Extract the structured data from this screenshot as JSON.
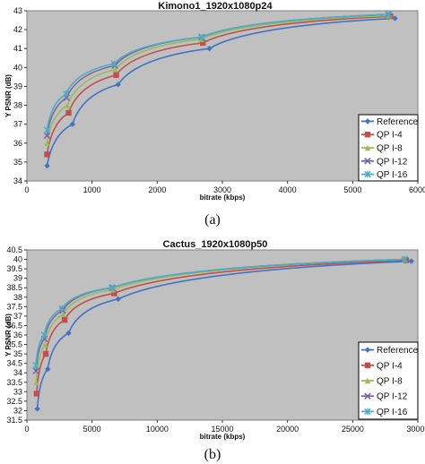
{
  "chart_data": [
    {
      "type": "line",
      "caption": "(a)",
      "title": "Kimono1_1920x1080p24",
      "xlabel": "bitrate (kbps)",
      "ylabel": "Y PSNR (dB)",
      "xlim": [
        0,
        6000
      ],
      "ylim": [
        34,
        43
      ],
      "x_ticks": [
        "0",
        "1000",
        "2000",
        "3000",
        "4000",
        "5000",
        "6000"
      ],
      "y_ticks": [
        "34",
        "35",
        "36",
        "37",
        "38",
        "39",
        "40",
        "41",
        "42",
        "43"
      ],
      "grid": false,
      "legend_position": "bottom-right",
      "series": [
        {
          "name": "Reference",
          "color": "#4472c4",
          "marker": "diamond",
          "x": [
            310,
            700,
            1400,
            2800,
            5650
          ],
          "y": [
            34.8,
            37.0,
            39.1,
            41.0,
            42.6
          ]
        },
        {
          "name": "QP I-4",
          "color": "#c0504d",
          "marker": "square",
          "x": [
            310,
            640,
            1370,
            2700,
            5580
          ],
          "y": [
            35.4,
            37.6,
            39.6,
            41.3,
            42.7
          ]
        },
        {
          "name": "QP I-8",
          "color": "#9bbb59",
          "marker": "triangle",
          "x": [
            310,
            620,
            1360,
            2680,
            5560
          ],
          "y": [
            36.0,
            38.0,
            39.9,
            41.5,
            42.75
          ]
        },
        {
          "name": "QP I-12",
          "color": "#8064a2",
          "marker": "x",
          "x": [
            310,
            610,
            1350,
            2680,
            5550
          ],
          "y": [
            36.4,
            38.4,
            40.1,
            41.6,
            42.8
          ]
        },
        {
          "name": "QP I-16",
          "color": "#4bacc6",
          "marker": "star",
          "x": [
            310,
            600,
            1340,
            2690,
            5560
          ],
          "y": [
            36.7,
            38.6,
            40.2,
            41.6,
            42.8
          ]
        }
      ]
    },
    {
      "type": "line",
      "caption": "(b)",
      "title": "Cactus_1920x1080p50",
      "xlabel": "bitrate (kbps)",
      "ylabel": "Y PSNR (dB)",
      "xlim": [
        0,
        30000
      ],
      "ylim": [
        31.5,
        40.5
      ],
      "x_ticks": [
        "0",
        "5000",
        "10000",
        "15000",
        "20000",
        "25000",
        "30000"
      ],
      "y_ticks": [
        "31.5",
        "32",
        "32.5",
        "33",
        "33.5",
        "34",
        "34.5",
        "35",
        "35.5",
        "36",
        "36.5",
        "37",
        "37.5",
        "38",
        "38.5",
        "39",
        "39.5",
        "40",
        "40.5"
      ],
      "grid": false,
      "legend_position": "bottom-right",
      "series": [
        {
          "name": "Reference",
          "color": "#4472c4",
          "marker": "diamond",
          "x": [
            800,
            1600,
            3200,
            7000,
            29500
          ],
          "y": [
            32.1,
            34.2,
            36.1,
            37.9,
            39.9
          ]
        },
        {
          "name": "QP I-4",
          "color": "#c0504d",
          "marker": "square",
          "x": [
            750,
            1450,
            2900,
            6700,
            29100
          ],
          "y": [
            32.9,
            35.0,
            36.8,
            38.2,
            39.95
          ]
        },
        {
          "name": "QP I-8",
          "color": "#9bbb59",
          "marker": "triangle",
          "x": [
            720,
            1400,
            2800,
            6600,
            29000
          ],
          "y": [
            33.5,
            35.5,
            37.1,
            38.4,
            40.0
          ]
        },
        {
          "name": "QP I-12",
          "color": "#8064a2",
          "marker": "x",
          "x": [
            700,
            1350,
            2750,
            6550,
            29000
          ],
          "y": [
            34.1,
            35.8,
            37.3,
            38.5,
            40.0
          ]
        },
        {
          "name": "QP I-16",
          "color": "#4bacc6",
          "marker": "star",
          "x": [
            690,
            1330,
            2700,
            6500,
            29000
          ],
          "y": [
            34.4,
            36.0,
            37.4,
            38.5,
            40.0
          ]
        }
      ]
    }
  ]
}
